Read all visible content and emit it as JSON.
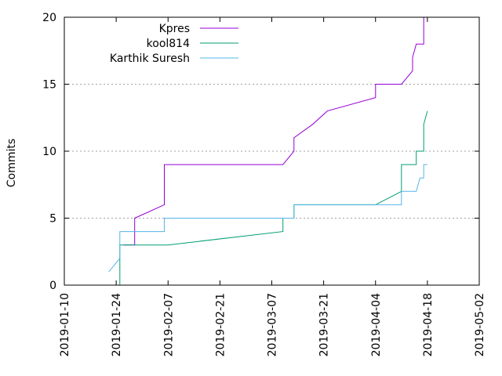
{
  "chart_data": {
    "type": "line",
    "title": "",
    "xlabel": "",
    "ylabel": "Commits",
    "x_type": "date",
    "xlim": [
      "2019-01-10",
      "2019-05-02"
    ],
    "ylim": [
      0,
      20
    ],
    "x_ticks": [
      "2019-01-10",
      "2019-01-24",
      "2019-02-07",
      "2019-02-21",
      "2019-03-07",
      "2019-03-21",
      "2019-04-04",
      "2019-04-18",
      "2019-05-02"
    ],
    "y_ticks": [
      0,
      5,
      10,
      15,
      20
    ],
    "grid": "horizontal dotted",
    "legend_position": "top-center",
    "series": [
      {
        "name": "Kpres",
        "color": "#9400d3",
        "points": [
          [
            "2019-01-26",
            3
          ],
          [
            "2019-01-29",
            3
          ],
          [
            "2019-01-29",
            5
          ],
          [
            "2019-02-06",
            6
          ],
          [
            "2019-02-06",
            9
          ],
          [
            "2019-03-10",
            9
          ],
          [
            "2019-03-13",
            10
          ],
          [
            "2019-03-13",
            11
          ],
          [
            "2019-03-18",
            12
          ],
          [
            "2019-03-22",
            13
          ],
          [
            "2019-04-04",
            14
          ],
          [
            "2019-04-04",
            15
          ],
          [
            "2019-04-11",
            15
          ],
          [
            "2019-04-14",
            16
          ],
          [
            "2019-04-14",
            17
          ],
          [
            "2019-04-15",
            18
          ],
          [
            "2019-04-17",
            18
          ],
          [
            "2019-04-17",
            20
          ]
        ]
      },
      {
        "name": "kool814",
        "color": "#009e73",
        "points": [
          [
            "2019-01-25",
            0
          ],
          [
            "2019-01-25",
            3
          ],
          [
            "2019-02-07",
            3
          ],
          [
            "2019-03-10",
            4
          ],
          [
            "2019-03-10",
            5
          ],
          [
            "2019-03-13",
            5
          ],
          [
            "2019-03-13",
            6
          ],
          [
            "2019-04-04",
            6
          ],
          [
            "2019-04-11",
            7
          ],
          [
            "2019-04-11",
            9
          ],
          [
            "2019-04-15",
            9
          ],
          [
            "2019-04-15",
            10
          ],
          [
            "2019-04-17",
            10
          ],
          [
            "2019-04-17",
            12
          ],
          [
            "2019-04-18",
            13
          ]
        ]
      },
      {
        "name": "Karthik Suresh",
        "color": "#56b4e9",
        "points": [
          [
            "2019-01-22",
            1
          ],
          [
            "2019-01-25",
            2
          ],
          [
            "2019-01-25",
            4
          ],
          [
            "2019-02-06",
            4
          ],
          [
            "2019-02-06",
            5
          ],
          [
            "2019-03-13",
            5
          ],
          [
            "2019-03-13",
            6
          ],
          [
            "2019-04-11",
            6
          ],
          [
            "2019-04-11",
            7
          ],
          [
            "2019-04-15",
            7
          ],
          [
            "2019-04-16",
            8
          ],
          [
            "2019-04-17",
            8
          ],
          [
            "2019-04-17",
            9
          ],
          [
            "2019-04-18",
            9
          ]
        ]
      }
    ]
  }
}
